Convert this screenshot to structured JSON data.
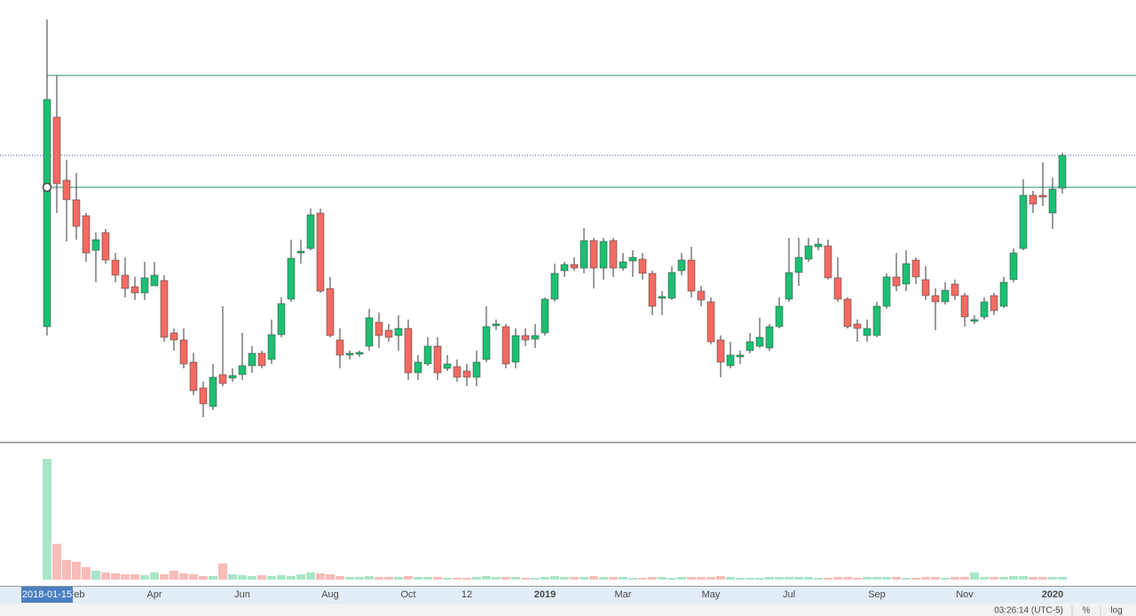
{
  "chart_data": {
    "type": "candlestick",
    "up_color": "#1dbf73",
    "down_color": "#f26b63",
    "wick_color": "#3a3a3a",
    "volume_up_color": "#a9e5c8",
    "volume_down_color": "#f9bcb8",
    "ylim": [
      0,
      500
    ],
    "volume_ylim": [
      0,
      140
    ],
    "levels": [
      415,
      289
    ],
    "level_color": "#2e8b76",
    "price_line": 325,
    "price_line_color": "#3355cc",
    "crosshair_label": "2018-01-15",
    "categories": [
      null,
      null,
      null,
      "Feb",
      null,
      null,
      null,
      null,
      null,
      null,
      null,
      "Apr",
      null,
      null,
      null,
      null,
      null,
      null,
      null,
      null,
      "Jun",
      null,
      null,
      null,
      null,
      null,
      null,
      null,
      null,
      "Aug",
      null,
      null,
      null,
      null,
      null,
      null,
      null,
      "Oct",
      null,
      null,
      null,
      null,
      null,
      "12",
      null,
      null,
      null,
      null,
      null,
      null,
      null,
      "2019",
      null,
      null,
      null,
      null,
      null,
      null,
      null,
      "Mar",
      null,
      null,
      null,
      null,
      null,
      null,
      null,
      null,
      "May",
      null,
      null,
      null,
      null,
      null,
      null,
      null,
      "Jul",
      null,
      null,
      null,
      null,
      null,
      null,
      null,
      null,
      "Sep",
      null,
      null,
      null,
      null,
      null,
      null,
      null,
      null,
      "Nov",
      null,
      null,
      null,
      null,
      null,
      null,
      null,
      null,
      "2020",
      null
    ],
    "bold_labels": [
      "2019",
      "2020"
    ],
    "open": [
      132,
      368,
      297,
      275,
      257,
      218,
      238,
      207,
      190,
      177,
      170,
      178,
      184,
      125,
      117,
      92,
      63,
      42,
      78,
      74,
      78,
      88,
      102,
      95,
      123,
      163,
      215,
      220,
      260,
      175,
      117,
      100,
      101,
      110,
      137,
      128,
      122,
      130,
      80,
      90,
      110,
      85,
      87,
      82,
      75,
      95,
      133,
      132,
      92,
      122,
      118,
      125,
      163,
      195,
      202,
      198,
      229,
      198,
      229,
      198,
      206,
      208,
      192,
      164,
      164,
      195,
      207,
      172,
      160,
      117,
      88,
      98,
      105,
      110,
      108,
      132,
      163,
      193,
      208,
      222,
      223,
      187,
      163,
      135,
      122,
      122,
      155,
      188,
      180,
      207,
      185,
      167,
      160,
      180,
      167,
      138,
      143,
      167,
      155,
      185,
      220,
      280,
      280,
      260,
      288
    ],
    "high": [
      478,
      415,
      320,
      305,
      260,
      238,
      242,
      215,
      210,
      188,
      205,
      205,
      190,
      130,
      130,
      102,
      70,
      90,
      155,
      85,
      125,
      110,
      105,
      140,
      165,
      230,
      230,
      265,
      265,
      188,
      130,
      105,
      105,
      152,
      148,
      135,
      145,
      140,
      100,
      120,
      120,
      100,
      95,
      90,
      105,
      155,
      140,
      135,
      130,
      130,
      135,
      165,
      203,
      205,
      210,
      243,
      232,
      232,
      232,
      215,
      218,
      215,
      195,
      172,
      200,
      215,
      222,
      178,
      165,
      122,
      115,
      105,
      125,
      142,
      135,
      165,
      232,
      232,
      232,
      232,
      230,
      210,
      165,
      140,
      140,
      160,
      192,
      215,
      218,
      210,
      200,
      175,
      182,
      185,
      170,
      145,
      165,
      170,
      188,
      220,
      298,
      285,
      317,
      300,
      328
    ],
    "low": [
      122,
      260,
      228,
      230,
      205,
      182,
      203,
      182,
      165,
      162,
      162,
      178,
      115,
      105,
      85,
      55,
      30,
      38,
      65,
      70,
      72,
      80,
      85,
      90,
      120,
      160,
      203,
      218,
      170,
      120,
      85,
      95,
      98,
      105,
      108,
      115,
      105,
      72,
      72,
      88,
      72,
      82,
      70,
      65,
      65,
      92,
      128,
      85,
      85,
      110,
      108,
      122,
      160,
      188,
      195,
      192,
      175,
      185,
      188,
      195,
      188,
      185,
      145,
      145,
      162,
      190,
      165,
      155,
      112,
      75,
      85,
      90,
      102,
      108,
      105,
      130,
      160,
      178,
      205,
      218,
      185,
      160,
      130,
      115,
      115,
      120,
      152,
      172,
      172,
      180,
      162,
      128,
      157,
      162,
      132,
      135,
      140,
      145,
      153,
      182,
      218,
      260,
      268,
      242,
      282
    ],
    "close": [
      388,
      293,
      275,
      245,
      215,
      230,
      207,
      190,
      175,
      170,
      187,
      190,
      120,
      117,
      90,
      60,
      45,
      75,
      68,
      77,
      88,
      102,
      88,
      123,
      158,
      209,
      217,
      258,
      172,
      122,
      100,
      102,
      103,
      142,
      122,
      120,
      130,
      80,
      92,
      110,
      80,
      90,
      75,
      75,
      92,
      132,
      135,
      90,
      122,
      117,
      122,
      163,
      192,
      202,
      198,
      229,
      198,
      228,
      198,
      205,
      210,
      192,
      155,
      166,
      193,
      207,
      172,
      162,
      115,
      92,
      100,
      100,
      115,
      120,
      132,
      155,
      193,
      210,
      223,
      225,
      187,
      163,
      132,
      130,
      130,
      155,
      188,
      178,
      203,
      188,
      167,
      160,
      173,
      167,
      143,
      140,
      160,
      150,
      182,
      215,
      280,
      270,
      278,
      287,
      325
    ],
    "volume": [
      135,
      40,
      22,
      20,
      14,
      10,
      8,
      7,
      6,
      6,
      5,
      8,
      6,
      10,
      7,
      6,
      4,
      4,
      18,
      6,
      5,
      4,
      5,
      4,
      5,
      4,
      6,
      8,
      7,
      6,
      4,
      3,
      3,
      4,
      3,
      3,
      3,
      4,
      3,
      3,
      3,
      2,
      2,
      2,
      3,
      4,
      3,
      3,
      3,
      2,
      2,
      3,
      4,
      3,
      3,
      3,
      4,
      3,
      3,
      3,
      2,
      2,
      3,
      3,
      2,
      3,
      3,
      3,
      3,
      4,
      3,
      2,
      2,
      2,
      3,
      3,
      3,
      3,
      3,
      2,
      2,
      3,
      3,
      2,
      3,
      3,
      3,
      3,
      2,
      2,
      3,
      3,
      2,
      3,
      3,
      8,
      3,
      3,
      3,
      4,
      4,
      3,
      3,
      3,
      3
    ]
  },
  "status_bar": {
    "time": "03:26:14 (UTC-5)",
    "percent": "%",
    "log": "log"
  }
}
